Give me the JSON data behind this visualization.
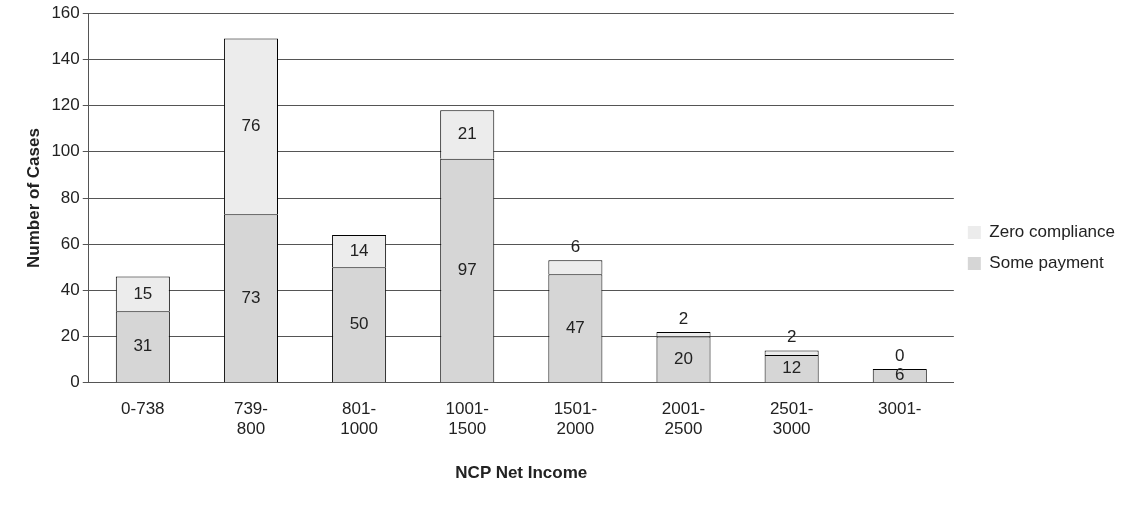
{
  "chart_data": {
    "type": "bar",
    "stacked": true,
    "xlabel": "NCP Net Income",
    "ylabel": "Number of Cases",
    "categories": [
      "0-738",
      "739-800",
      "801-1000",
      "1001-1500",
      "1501-2000",
      "2001-2500",
      "2501-3000",
      "3001-"
    ],
    "series": [
      {
        "name": "Some payment",
        "color": "#d6d6d6",
        "values": [
          31,
          73,
          50,
          97,
          47,
          20,
          12,
          6
        ]
      },
      {
        "name": "Zero compliance",
        "color": "#ececec",
        "values": [
          15,
          76,
          14,
          21,
          6,
          2,
          2,
          0
        ]
      }
    ],
    "ylim": [
      0,
      160
    ],
    "yticks": [
      0,
      20,
      40,
      60,
      80,
      100,
      120,
      140,
      160
    ],
    "grid": "y",
    "legend": "right",
    "data_labels": true
  }
}
